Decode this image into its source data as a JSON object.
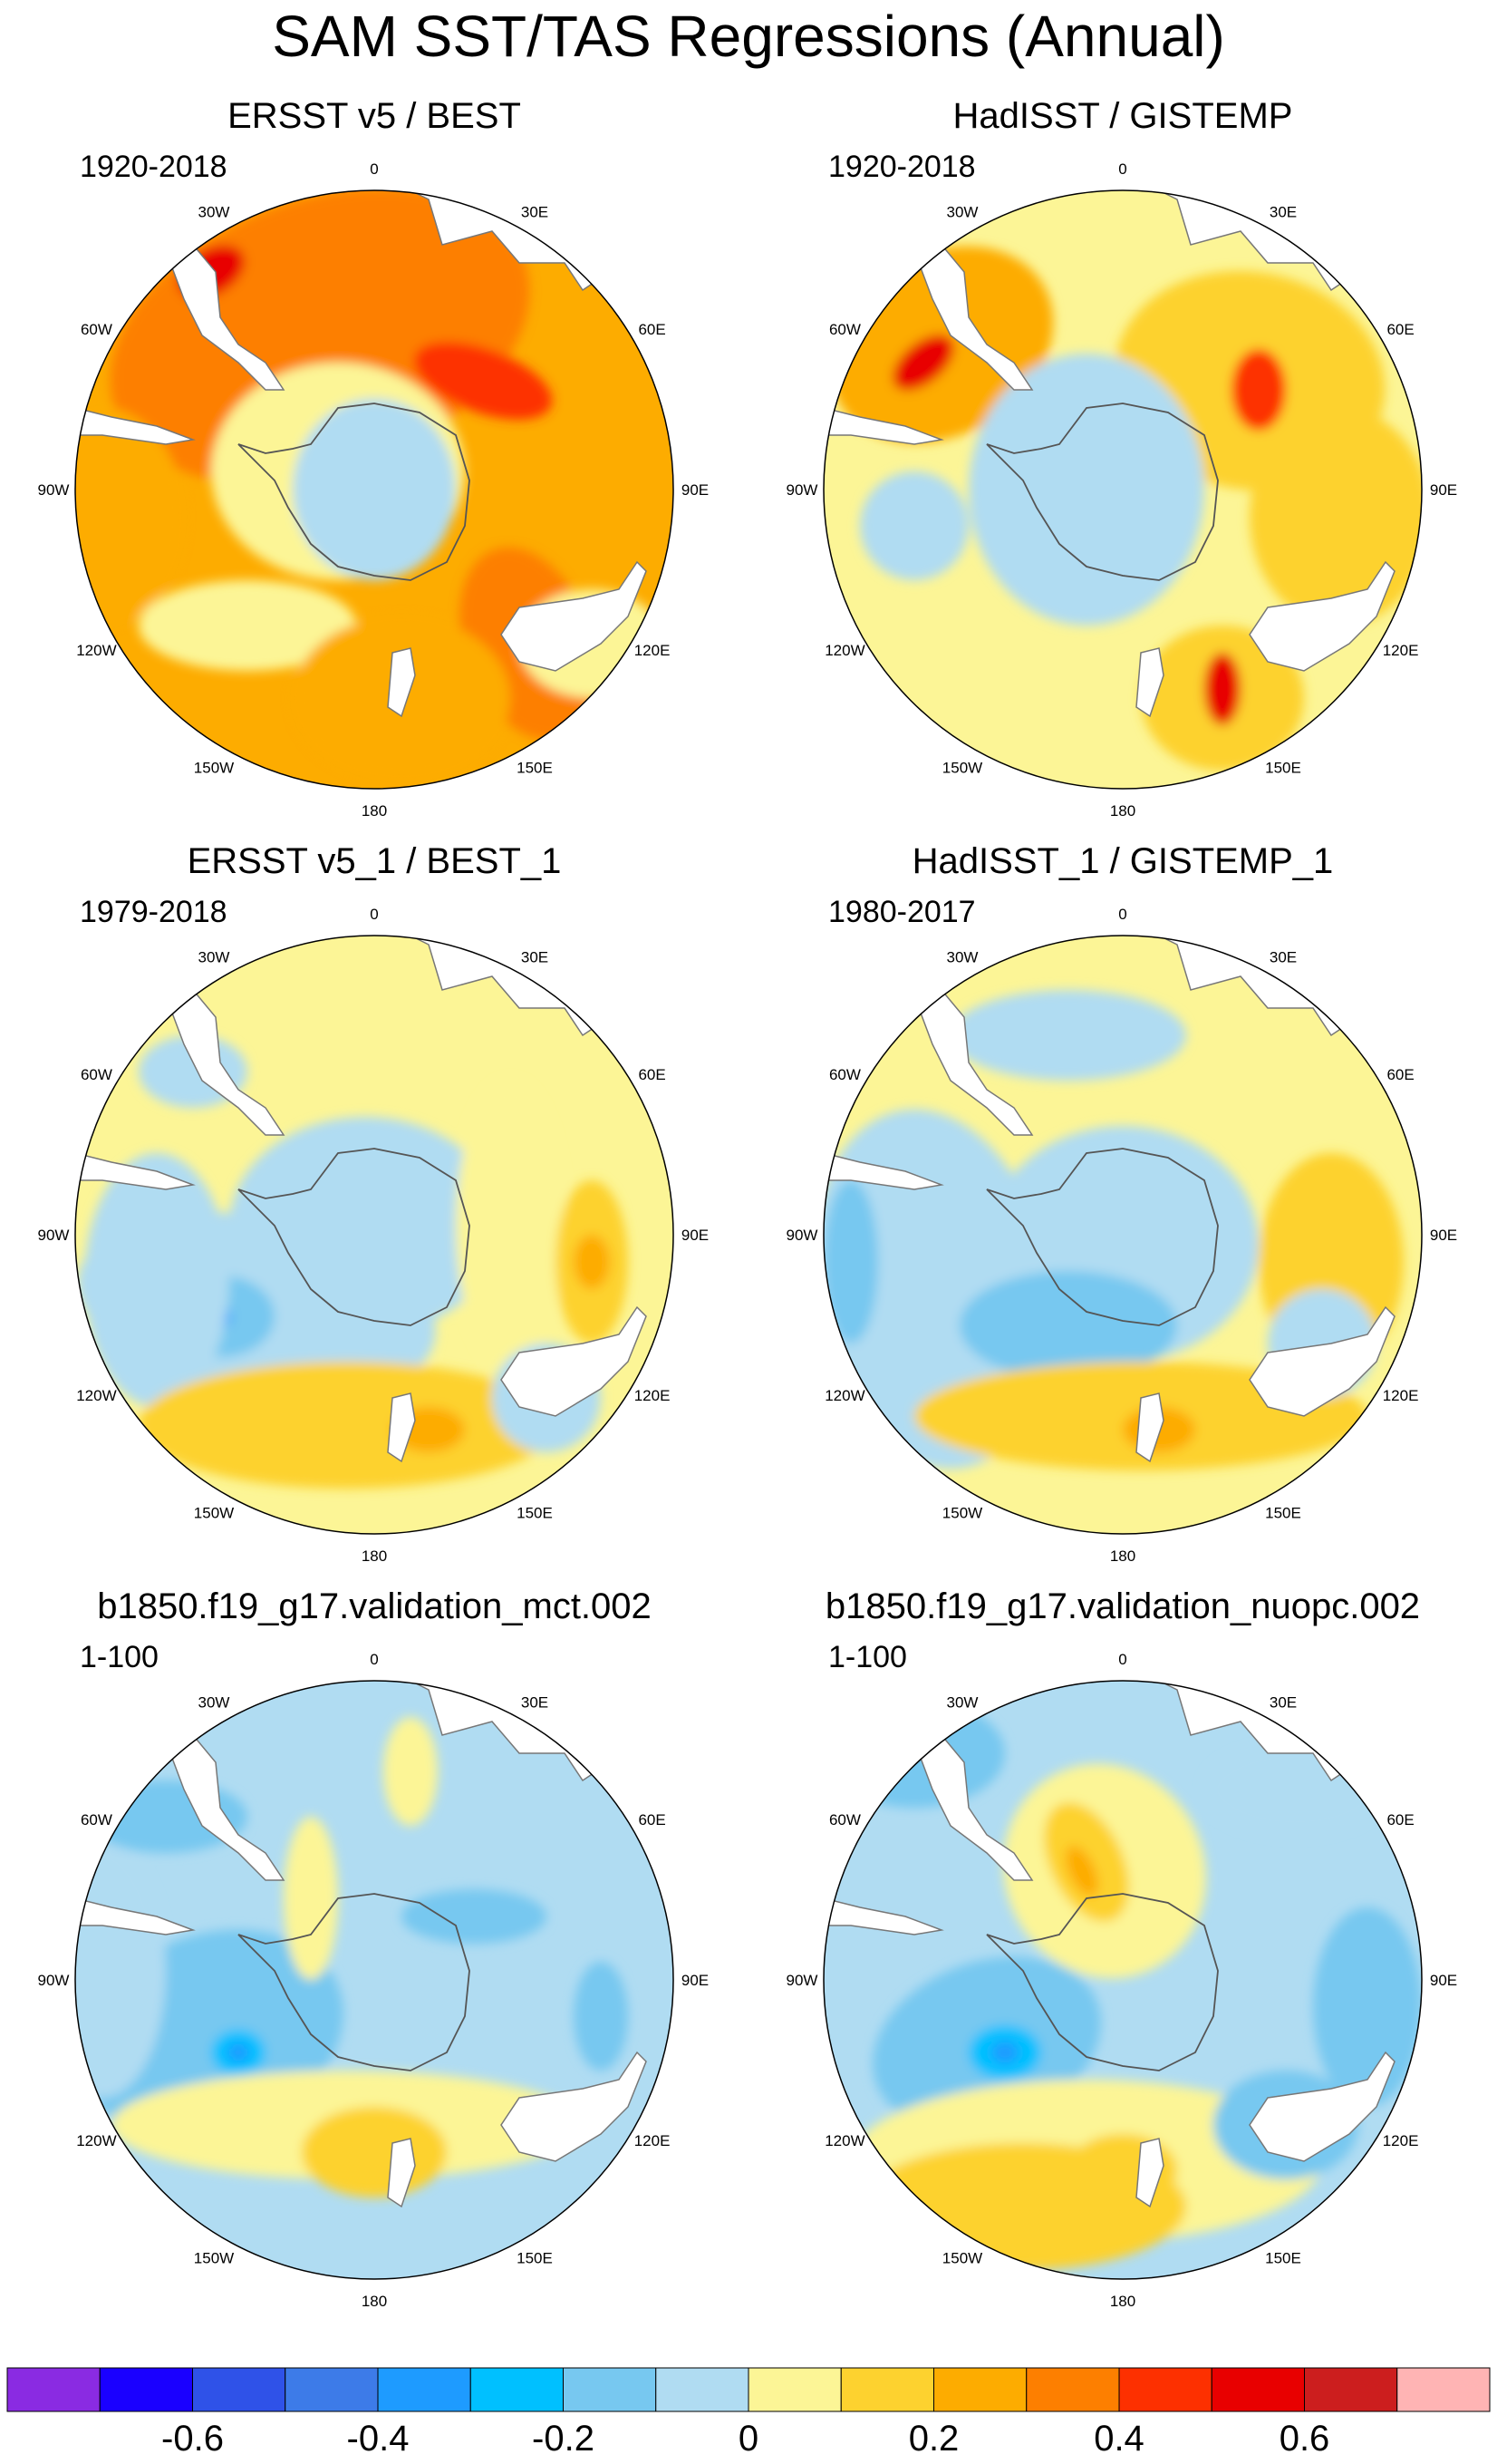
{
  "title": "SAM SST/TAS Regressions (Annual)",
  "panels": [
    {
      "title": "ERSST v5 / BEST",
      "period": "1920-2018",
      "scheme": "warm"
    },
    {
      "title": "HadISST / GISTEMP",
      "period": "1920-2018",
      "scheme": "warm2"
    },
    {
      "title": "ERSST v5_1 / BEST_1",
      "period": "1979-2018",
      "scheme": "mixed"
    },
    {
      "title": "HadISST_1 / GISTEMP_1",
      "period": "1980-2017",
      "scheme": "mixed2"
    },
    {
      "title": "b1850.f19_g17.validation_mct.002",
      "period": "1-100",
      "scheme": "cool"
    },
    {
      "title": "b1850.f19_g17.validation_nuopc.002",
      "period": "1-100",
      "scheme": "cool2"
    }
  ],
  "longitude_labels": [
    "0",
    "30E",
    "60E",
    "90E",
    "120E",
    "150E",
    "180",
    "150W",
    "120W",
    "90W",
    "60W",
    "30W"
  ],
  "colorbar": {
    "colors": [
      "#8a2be2",
      "#1a00ff",
      "#2f52e8",
      "#3d7be8",
      "#1e9bff",
      "#00c0ff",
      "#77c8f0",
      "#b0dcf2",
      "#fcf596",
      "#fdd22f",
      "#fdac00",
      "#fd7f00",
      "#fd3000",
      "#e80000",
      "#cc1e1e",
      "#ffb4b4"
    ],
    "tick_labels": [
      "-0.6",
      "-0.4",
      "-0.2",
      "0",
      "0.2",
      "0.4",
      "0.6"
    ]
  }
}
